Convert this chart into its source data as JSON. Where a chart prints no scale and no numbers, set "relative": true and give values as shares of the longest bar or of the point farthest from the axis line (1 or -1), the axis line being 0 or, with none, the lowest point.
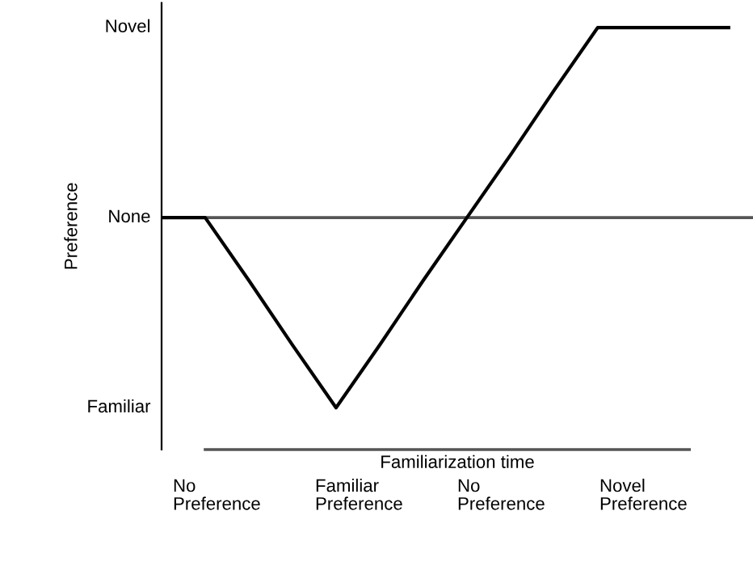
{
  "chart_data": {
    "type": "line",
    "xlabel": "Familiarization time",
    "ylabel": "Preference",
    "relative": true,
    "categories": [
      null,
      null,
      null,
      null,
      null,
      null,
      null,
      null,
      null,
      null,
      null,
      null,
      null,
      null
    ],
    "series": [
      {
        "color": "#000000",
        "values": [
          0,
          0,
          -0.33,
          -0.67,
          -1,
          -0.67,
          -0.33,
          0,
          0.33,
          0.67,
          1,
          1,
          1,
          1
        ]
      }
    ],
    "annotations": [
      "Novel",
      "None",
      "Familiar",
      "No\nPreference",
      "Familiar\nPreference",
      "No\nPreference",
      "Novel\nPreference"
    ],
    "ref_lines": [
      {
        "axis": "y",
        "value": 0,
        "color": "#555555"
      }
    ],
    "marker": "none",
    "line_style": "solid"
  }
}
